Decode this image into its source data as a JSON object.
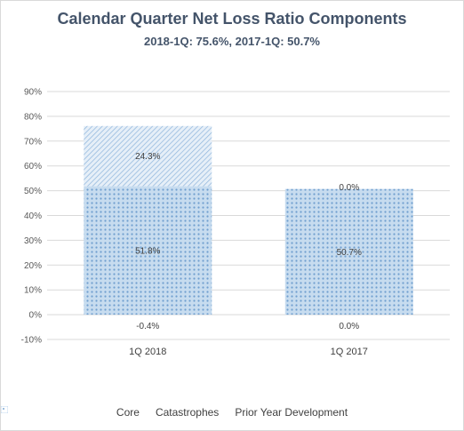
{
  "chart_data": {
    "type": "bar",
    "stacked": true,
    "title": "Calendar Quarter Net Loss Ratio Components",
    "subtitle": "2018-1Q: 75.6%, 2017-1Q: 50.7%",
    "categories": [
      "1Q 2018",
      "1Q 2017"
    ],
    "series": [
      {
        "name": "Core",
        "values": [
          51.8,
          50.7
        ],
        "labels": [
          "51.8%",
          "50.7%"
        ],
        "color": "#9dc3e6",
        "pattern": "dots"
      },
      {
        "name": "Catastrophes",
        "values": [
          24.3,
          0.0
        ],
        "labels": [
          "24.3%",
          "0.0%"
        ],
        "color": "#9dc3e6",
        "pattern": "diagonal"
      },
      {
        "name": "Prior Year Development",
        "values": [
          -0.4,
          0.0
        ],
        "labels": [
          "-0.4%",
          "0.0%"
        ],
        "color": "#9dc3e6",
        "pattern": "sparse-dots"
      }
    ],
    "ylim": [
      -10,
      90
    ],
    "yticks": [
      -10,
      0,
      10,
      20,
      30,
      40,
      50,
      60,
      70,
      80,
      90
    ],
    "ytick_labels": [
      "-10%",
      "0%",
      "10%",
      "20%",
      "30%",
      "40%",
      "50%",
      "60%",
      "70%",
      "80%",
      "90%"
    ],
    "grid": true,
    "legend_position": "bottom"
  }
}
